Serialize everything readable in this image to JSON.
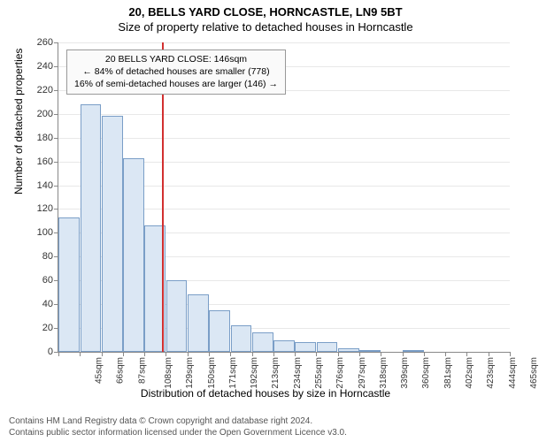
{
  "title_line1": "20, BELLS YARD CLOSE, HORNCASTLE, LN9 5BT",
  "title_line2": "Size of property relative to detached houses in Horncastle",
  "ylabel": "Number of detached properties",
  "xlabel": "Distribution of detached houses by size in Horncastle",
  "chart": {
    "type": "histogram",
    "ylim": [
      0,
      260
    ],
    "ytick_step": 20,
    "bar_fill": "#dbe7f4",
    "bar_stroke": "#7a9ec7",
    "grid_color": "#e8e8e8",
    "axis_color": "#888888",
    "background": "#ffffff",
    "ref_line_color": "#d23030",
    "ref_line_value": 146,
    "x_start": 45,
    "x_step": 21,
    "x_unit": "sqm",
    "x_labels": [
      "45sqm",
      "66sqm",
      "87sqm",
      "108sqm",
      "129sqm",
      "150sqm",
      "171sqm",
      "192sqm",
      "213sqm",
      "234sqm",
      "255sqm",
      "276sqm",
      "297sqm",
      "318sqm",
      "339sqm",
      "360sqm",
      "381sqm",
      "402sqm",
      "423sqm",
      "444sqm",
      "465sqm"
    ],
    "values": [
      113,
      208,
      198,
      163,
      106,
      60,
      48,
      35,
      22,
      16,
      10,
      8,
      8,
      3,
      1,
      0,
      1,
      0,
      0,
      0,
      0
    ]
  },
  "annotation": {
    "line1": "20 BELLS YARD CLOSE: 146sqm",
    "line2": "← 84% of detached houses are smaller (778)",
    "line3": "16% of semi-detached houses are larger (146) →"
  },
  "footer_line1": "Contains HM Land Registry data © Crown copyright and database right 2024.",
  "footer_line2": "Contains public sector information licensed under the Open Government Licence v3.0."
}
